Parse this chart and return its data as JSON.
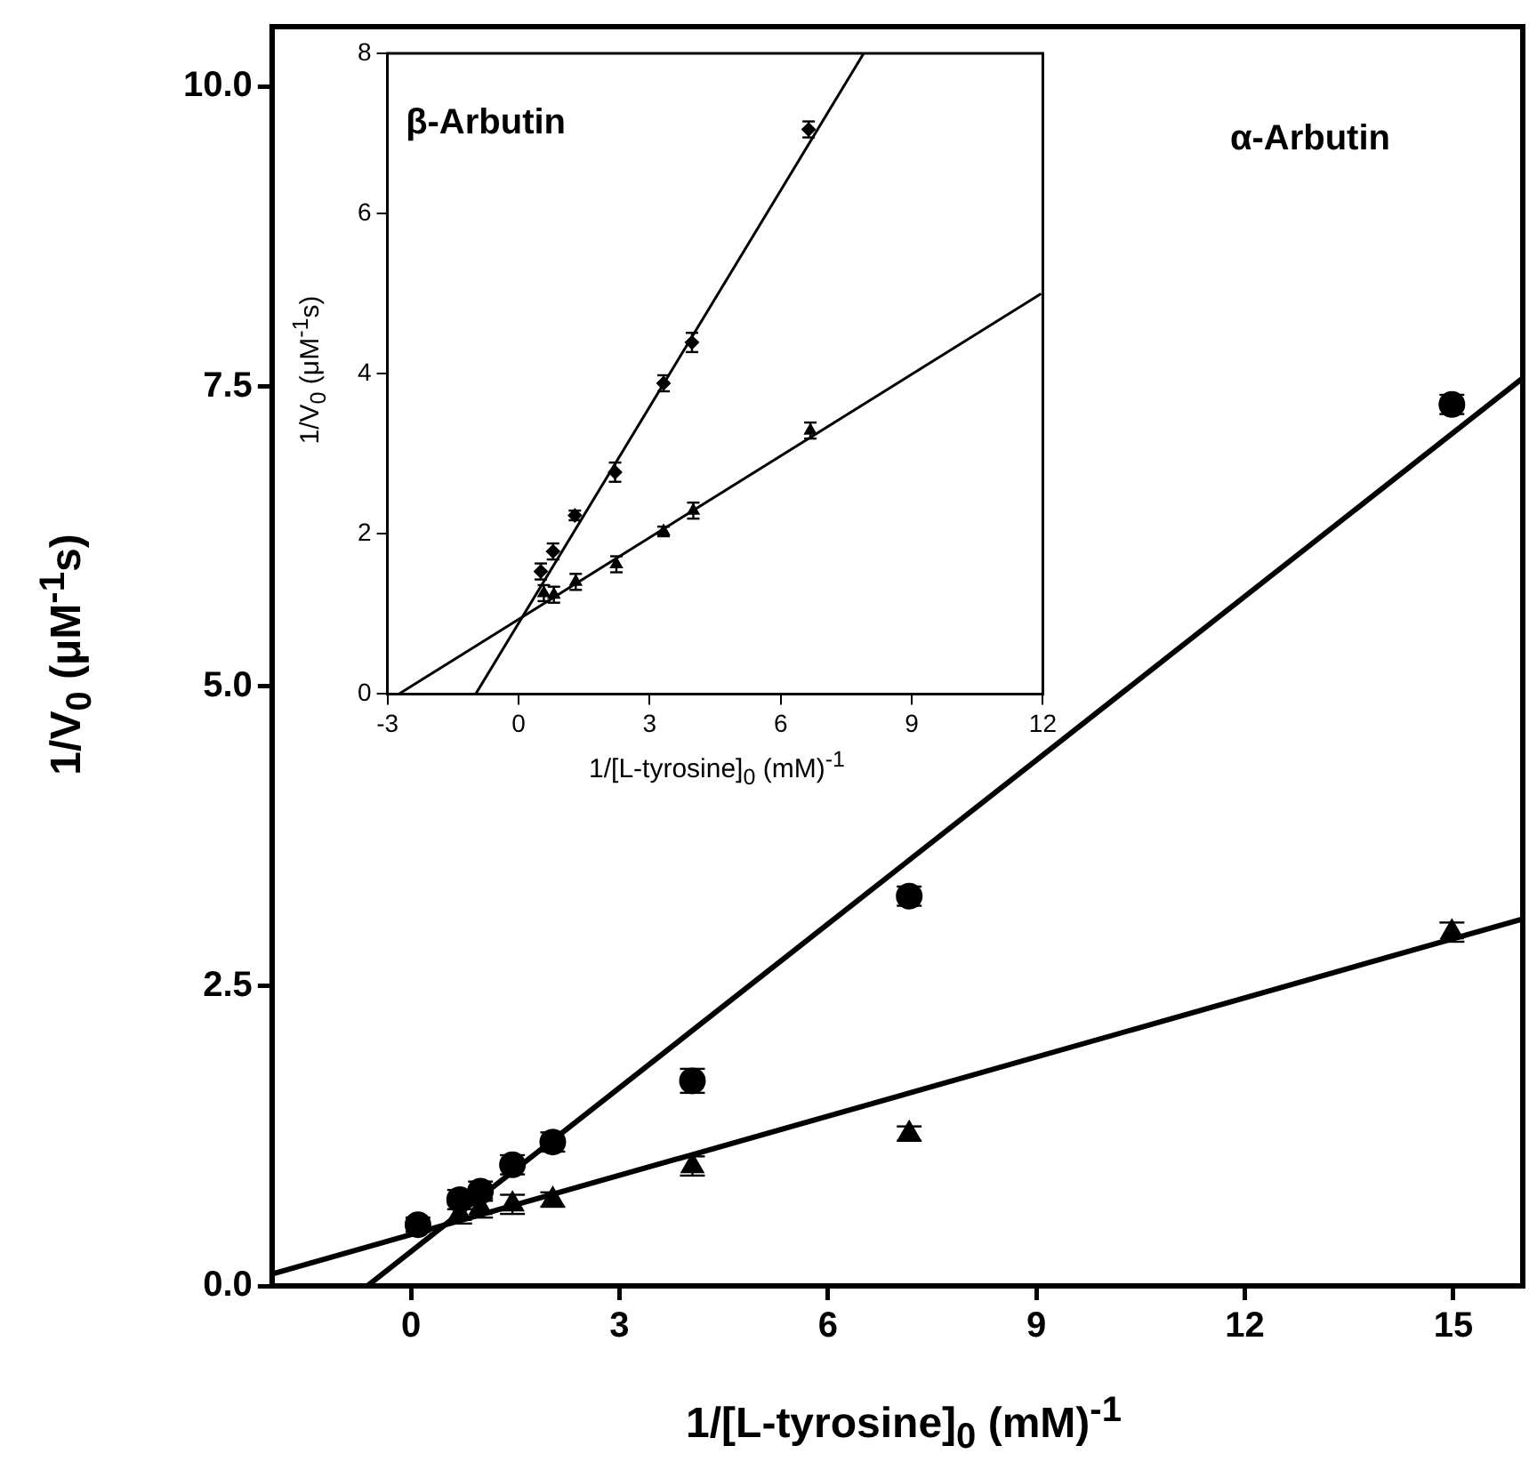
{
  "chart_data": [
    {
      "type": "scatter",
      "xlabel": "1/[L-tyrosine]$_{0}$ (mM)$^{-1}$",
      "ylabel": "1/V$_{0}$ (μM$^{-1}$s)",
      "annotations": [
        "α-Arbutin"
      ],
      "xlim": [
        -2,
        16
      ],
      "xticks": [
        0,
        3,
        6,
        9,
        12,
        15
      ],
      "ylim": [
        0,
        10.5
      ],
      "yticks": [
        {
          "value": 0,
          "label": "0.0"
        },
        2.5,
        {
          "value": 5,
          "label": "5.0"
        },
        7.5,
        {
          "value": 10,
          "label": "10.0"
        }
      ],
      "series": [
        {
          "type": "scatter",
          "marker": "circle",
          "color": "#000000",
          "x": [
            0.1,
            0.7,
            1.0,
            1.46,
            2.04,
            4.05,
            7.17,
            14.98
          ],
          "values": [
            0.51,
            0.72,
            0.79,
            1.01,
            1.2,
            1.71,
            3.25,
            7.35
          ],
          "errors": [
            0.06,
            0.08,
            0.08,
            0.08,
            0.08,
            0.1,
            0.08,
            0.08
          ]
        },
        {
          "type": "scatter",
          "marker": "triangle",
          "color": "#000000",
          "x": [
            0.7,
            1.0,
            1.46,
            2.04,
            4.05,
            7.17,
            14.98
          ],
          "values": [
            0.6,
            0.65,
            0.68,
            0.72,
            1.0,
            1.27,
            2.95
          ],
          "errors": [
            0.08,
            0.08,
            0.08,
            0.06,
            0.08,
            0.06,
            0.08
          ]
        },
        {
          "type": "line",
          "marker": "none",
          "color": "#000000",
          "x": [
            -0.63,
            16
          ],
          "values": [
            0,
            7.57
          ]
        },
        {
          "type": "line",
          "marker": "none",
          "color": "#000000",
          "x": [
            -2,
            16
          ],
          "values": [
            0.1,
            3.06
          ]
        }
      ]
    },
    {
      "type": "scatter",
      "xlabel": "1/[L-tyrosine]$_{0}$ (mM)$^{-1}$",
      "ylabel": "1/V$_{0}$ (μM$^{-1}$s)",
      "annotations": [
        "β-Arbutin"
      ],
      "xlim": [
        -3,
        12
      ],
      "xticks": [
        -3,
        0,
        3,
        6,
        9,
        12
      ],
      "ylim": [
        0,
        8
      ],
      "yticks": [
        0,
        2,
        4,
        6,
        8
      ],
      "series": [
        {
          "type": "scatter",
          "marker": "diamond",
          "color": "#000000",
          "x": [
            0.51,
            0.79,
            1.29,
            2.21,
            3.32,
            3.97,
            6.64
          ],
          "values": [
            1.53,
            1.78,
            2.23,
            2.77,
            3.88,
            4.39,
            7.05
          ],
          "errors": [
            0.1,
            0.1,
            0.06,
            0.12,
            0.1,
            0.12,
            0.1
          ]
        },
        {
          "type": "scatter",
          "marker": "triangle",
          "color": "#000000",
          "x": [
            0.58,
            0.81,
            1.31,
            2.24,
            3.32,
            4.0,
            6.68
          ],
          "values": [
            1.26,
            1.24,
            1.4,
            1.62,
            2.03,
            2.29,
            3.29
          ],
          "errors": [
            0.1,
            0.1,
            0.1,
            0.1,
            0.06,
            0.1,
            0.1
          ]
        },
        {
          "type": "line",
          "marker": "none",
          "color": "#000000",
          "x": [
            -0.98,
            7.9
          ],
          "values": [
            0,
            8
          ]
        },
        {
          "type": "line",
          "marker": "none",
          "color": "#000000",
          "x": [
            -2.74,
            11.96
          ],
          "values": [
            0,
            5.0
          ]
        }
      ]
    }
  ]
}
